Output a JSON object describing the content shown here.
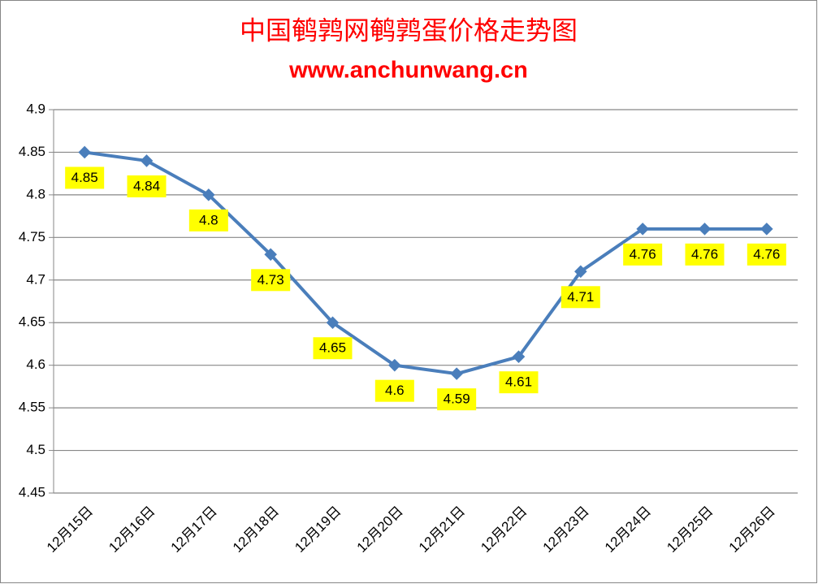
{
  "chart_data": {
    "type": "line",
    "title": "中国鹌鹑网鹌鹑蛋价格走势图",
    "subtitle": "www.anchunwang.cn",
    "categories": [
      "12月15日",
      "12月16日",
      "12月17日",
      "12月18日",
      "12月19日",
      "12月20日",
      "12月21日",
      "12月22日",
      "12月23日",
      "12月24日",
      "12月25日",
      "12月26日"
    ],
    "values": [
      4.85,
      4.84,
      4.8,
      4.73,
      4.65,
      4.6,
      4.59,
      4.61,
      4.71,
      4.76,
      4.76,
      4.76
    ],
    "color": "#4a7ebb",
    "label_background": "#ffff00",
    "ylim": [
      4.45,
      4.9
    ],
    "yticks": [
      4.45,
      4.5,
      4.55,
      4.6,
      4.65,
      4.7,
      4.75,
      4.8,
      4.85,
      4.9
    ],
    "grid": true
  }
}
